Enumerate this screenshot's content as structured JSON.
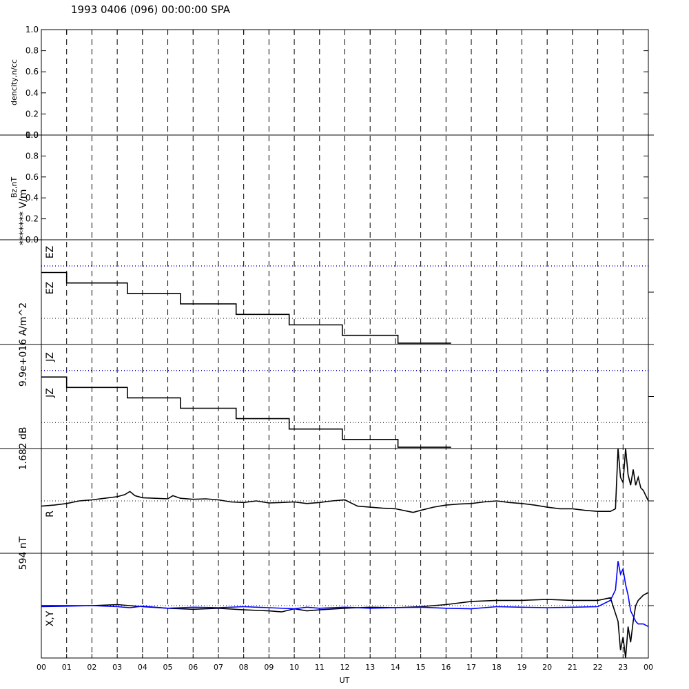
{
  "header": {
    "title": "1993 0406 (096) 00:00:00 SPA"
  },
  "colors": {
    "axis": "#000000",
    "series_black": "#000000",
    "series_blue": "#0000ff",
    "dotted_ref": "#0000cc"
  },
  "chart_data": {
    "type": "line",
    "x_axis": {
      "label": "UT",
      "range": [
        0,
        24
      ],
      "ticks": [
        "00",
        "01",
        "02",
        "03",
        "04",
        "05",
        "06",
        "07",
        "08",
        "09",
        "10",
        "11",
        "12",
        "13",
        "14",
        "15",
        "16",
        "17",
        "18",
        "19",
        "20",
        "21",
        "22",
        "23",
        "00"
      ],
      "grid": "dashed vertical lines every hour"
    },
    "panels": [
      {
        "id": "density",
        "ylabel": "dencity,n/cc",
        "ylim": [
          0,
          1
        ],
        "yticks": [
          "0.0",
          "0.2",
          "0.4",
          "0.6",
          "0.8",
          "1.0"
        ],
        "series": [
          {
            "values": []
          }
        ]
      },
      {
        "id": "bz",
        "ylabel": "Bz,nT",
        "ylim": [
          0,
          1
        ],
        "yticks": [
          "0.0",
          "0.2",
          "0.4",
          "0.6",
          "0.8",
          "1.0"
        ],
        "series": [
          {
            "values": []
          }
        ]
      },
      {
        "id": "ez",
        "scale_label": "******* V/m",
        "tags": [
          "EZ",
          "EZ"
        ],
        "ylim": [
          0,
          4
        ],
        "series": [
          {
            "x": [
              0,
              1,
              1,
              3.4,
              3.4,
              5.5,
              5.5,
              7.7,
              7.7,
              9.8,
              9.8,
              11.9,
              11.9,
              14.1,
              14.1,
              16.2
            ],
            "y": [
              2.75,
              2.75,
              2.35,
              2.35,
              1.95,
              1.95,
              1.55,
              1.55,
              1.15,
              1.15,
              0.75,
              0.75,
              0.35,
              0.35,
              0.05,
              0.05
            ]
          }
        ],
        "ref_levels": [
          3,
          1
        ]
      },
      {
        "id": "jz",
        "scale_label": "9.9e+016 A/m^2",
        "tags": [
          "JZ",
          "JZ"
        ],
        "ylim": [
          0,
          4
        ],
        "series": [
          {
            "x": [
              0,
              1,
              1,
              3.4,
              3.4,
              5.5,
              5.5,
              7.7,
              7.7,
              9.8,
              9.8,
              11.9,
              11.9,
              14.1,
              14.1,
              16.2
            ],
            "y": [
              2.75,
              2.75,
              2.35,
              2.35,
              1.95,
              1.95,
              1.55,
              1.55,
              1.15,
              1.15,
              0.75,
              0.75,
              0.35,
              0.35,
              0.05,
              0.05
            ]
          }
        ],
        "ref_levels": [
          3,
          1
        ]
      },
      {
        "id": "r",
        "scale_label": "1.682 dB",
        "tags": [
          "R"
        ],
        "ylim": [
          -1,
          1
        ],
        "series": [
          {
            "x": [
              0,
              0.5,
              1,
              1.5,
              2,
              2.5,
              3,
              3.3,
              3.5,
              3.7,
              4,
              4.5,
              5,
              5.2,
              5.5,
              6,
              6.5,
              7,
              7.5,
              8,
              8.5,
              9,
              9.5,
              10,
              10.5,
              11,
              11.5,
              12,
              12.5,
              13,
              13.5,
              14,
              14.5,
              14.7,
              15,
              15.5,
              16,
              16.5,
              17,
              17.5,
              18,
              18.5,
              19,
              19.5,
              20,
              20.5,
              21,
              21.5,
              22,
              22.5,
              22.7,
              22.8,
              22.9,
              23.0,
              23.1,
              23.2,
              23.3,
              23.4,
              23.5,
              23.6,
              23.7,
              23.8,
              23.9,
              24
            ],
            "y": [
              -0.1,
              -0.08,
              -0.05,
              0,
              0.02,
              0.05,
              0.08,
              0.12,
              0.18,
              0.1,
              0.06,
              0.05,
              0.04,
              0.1,
              0.05,
              0.03,
              0.04,
              0.02,
              -0.02,
              -0.03,
              0.0,
              -0.04,
              -0.03,
              -0.02,
              -0.05,
              -0.03,
              0.0,
              0.02,
              -0.1,
              -0.12,
              -0.14,
              -0.15,
              -0.2,
              -0.22,
              -0.18,
              -0.12,
              -0.08,
              -0.06,
              -0.05,
              -0.02,
              0.0,
              -0.03,
              -0.05,
              -0.08,
              -0.12,
              -0.15,
              -0.15,
              -0.18,
              -0.2,
              -0.2,
              -0.15,
              1.0,
              0.45,
              0.35,
              1.0,
              0.5,
              0.3,
              0.6,
              0.3,
              0.45,
              0.25,
              0.2,
              0.1,
              0.0
            ]
          }
        ]
      },
      {
        "id": "xy",
        "scale_label": "594 nT",
        "tags": [
          "X,Y"
        ],
        "ylim": [
          -1,
          1
        ],
        "series": [
          {
            "name_color": "black",
            "x": [
              0,
              1,
              2,
              3,
              3.5,
              4,
              5,
              6,
              7,
              8,
              9,
              9.5,
              10,
              10.5,
              11,
              12,
              13,
              14,
              15,
              16,
              17,
              18,
              19,
              20,
              21,
              22,
              22.5,
              22.8,
              22.9,
              23.0,
              23.1,
              23.2,
              23.3,
              23.4,
              23.5,
              23.6,
              23.8,
              24
            ],
            "y": [
              0.0,
              0.0,
              0.0,
              0.02,
              0.0,
              -0.02,
              -0.05,
              -0.07,
              -0.05,
              -0.08,
              -0.1,
              -0.12,
              -0.06,
              -0.1,
              -0.08,
              -0.05,
              -0.03,
              -0.04,
              -0.02,
              0.02,
              0.08,
              0.1,
              0.1,
              0.12,
              0.1,
              0.1,
              0.15,
              -0.3,
              -0.85,
              -0.6,
              -1.0,
              -0.4,
              -0.7,
              -0.3,
              0.0,
              0.1,
              0.2,
              0.25
            ]
          },
          {
            "name_color": "blue",
            "x": [
              0,
              1,
              2,
              3,
              3.5,
              4,
              5,
              6,
              7,
              8,
              9,
              10,
              10.5,
              11,
              12,
              13,
              14,
              15,
              16,
              17,
              18,
              19,
              20,
              21,
              22,
              22.5,
              22.7,
              22.8,
              22.9,
              23.0,
              23.1,
              23.2,
              23.3,
              23.4,
              23.5,
              23.6,
              23.8,
              24
            ],
            "y": [
              -0.02,
              -0.01,
              0.0,
              -0.02,
              -0.04,
              -0.01,
              -0.05,
              -0.03,
              -0.04,
              -0.02,
              -0.04,
              -0.06,
              -0.03,
              -0.05,
              -0.03,
              -0.05,
              -0.04,
              -0.03,
              -0.05,
              -0.06,
              -0.02,
              -0.03,
              -0.04,
              -0.03,
              -0.02,
              0.1,
              0.3,
              0.85,
              0.6,
              0.7,
              0.4,
              0.2,
              -0.1,
              -0.2,
              -0.3,
              -0.35,
              -0.35,
              -0.4
            ]
          }
        ]
      }
    ]
  }
}
